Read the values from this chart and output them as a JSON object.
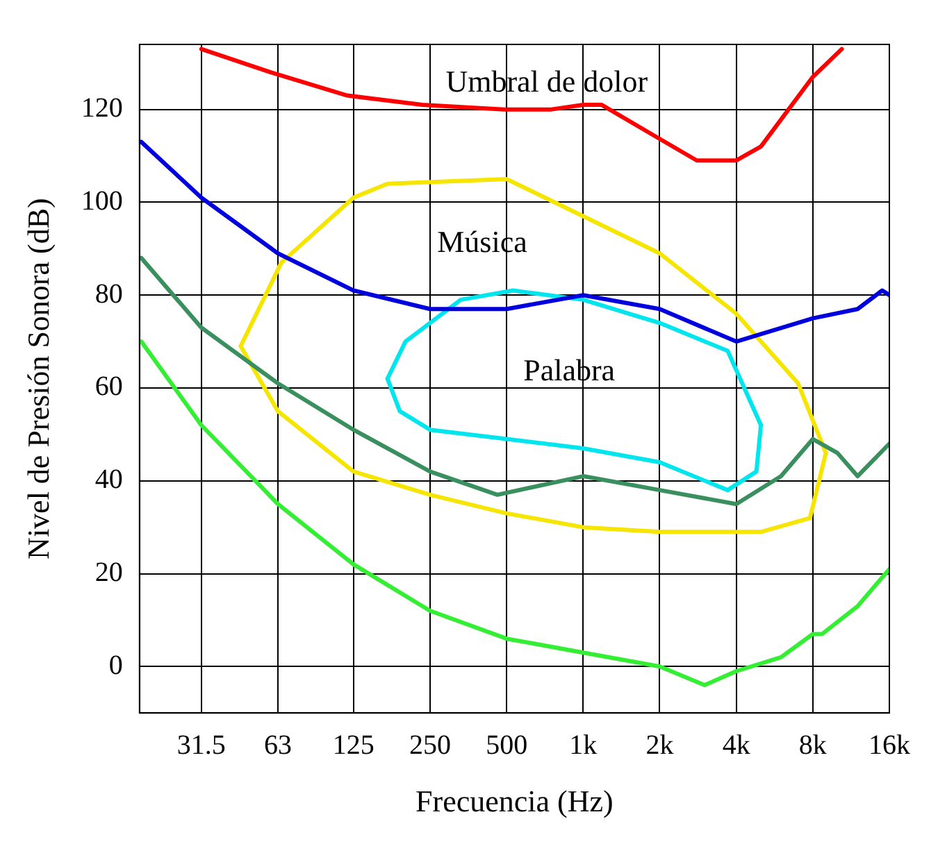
{
  "chart_data": {
    "type": "line",
    "xlabel": "Frecuencia (Hz)",
    "ylabel": "Nivel de Presión Sonora (dB)",
    "log": "x",
    "grid": true,
    "legend": false,
    "marker": "none",
    "line_style": "solid",
    "xlim": [
      18,
      16000
    ],
    "ylim": [
      -10,
      134
    ],
    "xticks": [
      {
        "value": 31.5,
        "label": "31.5"
      },
      {
        "value": 63,
        "label": "63"
      },
      {
        "value": 125,
        "label": "125"
      },
      {
        "value": 250,
        "label": "250"
      },
      {
        "value": 500,
        "label": "500"
      },
      {
        "value": 1000,
        "label": "1k"
      },
      {
        "value": 2000,
        "label": "2k"
      },
      {
        "value": 4000,
        "label": "4k"
      },
      {
        "value": 8000,
        "label": "8k"
      },
      {
        "value": 16000,
        "label": "16k"
      }
    ],
    "yticks": [
      0,
      20,
      40,
      60,
      80,
      100,
      120
    ],
    "series": [
      {
        "color": "#ff0000",
        "x": [
          31.5,
          59,
          118,
          233,
          490,
          750,
          1000,
          1180,
          1950,
          2800,
          4000,
          5000,
          8000,
          10400
        ],
        "values": [
          133,
          128,
          123,
          121,
          120,
          120,
          121,
          121,
          114,
          109,
          109,
          112,
          127,
          133
        ]
      },
      {
        "color": "#0000dd",
        "x": [
          18.3,
          31.5,
          63,
          125,
          250,
          500,
          1000,
          2000,
          4000,
          8000,
          12000,
          15000,
          16000
        ],
        "values": [
          113,
          101,
          89,
          81,
          77,
          77,
          80,
          77,
          70,
          75,
          77,
          81,
          80
        ]
      },
      {
        "color": "#3a8f5f",
        "x": [
          18.3,
          31.5,
          63,
          125,
          250,
          460,
          1000,
          2000,
          4000,
          6000,
          8000,
          10000,
          12000,
          16000
        ],
        "values": [
          88,
          73,
          61,
          51,
          42,
          37,
          41,
          38,
          35,
          41,
          49,
          46,
          41,
          48
        ]
      },
      {
        "color": "#33ee33",
        "x": [
          18.3,
          31.5,
          63,
          125,
          250,
          500,
          1000,
          2000,
          3000,
          4000,
          6000,
          8000,
          8700,
          12000,
          16000
        ],
        "values": [
          70,
          52,
          35,
          22,
          12,
          6,
          3,
          0,
          -4,
          -1,
          2,
          7,
          7,
          13,
          21
        ]
      },
      {
        "color": "#f5e500",
        "x": [
          45,
          65,
          125,
          170,
          500,
          1000,
          2000,
          4000,
          7000,
          9000
        ],
        "values": [
          69,
          87,
          101,
          104,
          105,
          97,
          89,
          76,
          61,
          46
        ]
      },
      {
        "color": "#f5e500",
        "x": [
          45,
          63,
          125,
          250,
          500,
          1000,
          2000,
          5000,
          7800,
          9000
        ],
        "values": [
          69,
          55,
          42,
          37,
          33,
          30,
          29,
          29,
          32,
          46
        ]
      },
      {
        "color": "#00e5ee",
        "x": [
          170,
          200,
          330,
          530,
          1000,
          2000,
          3700,
          5000
        ],
        "values": [
          62,
          70,
          79,
          81,
          79,
          74,
          68,
          52
        ]
      },
      {
        "color": "#00e5ee",
        "x": [
          170,
          190,
          250,
          500,
          1000,
          2000,
          3700,
          4800,
          5000
        ],
        "values": [
          62,
          55,
          51,
          49,
          47,
          44,
          38,
          42,
          52
        ]
      }
    ],
    "annotations": [
      "Umbral de dolor",
      "Música",
      "Palabra"
    ]
  }
}
